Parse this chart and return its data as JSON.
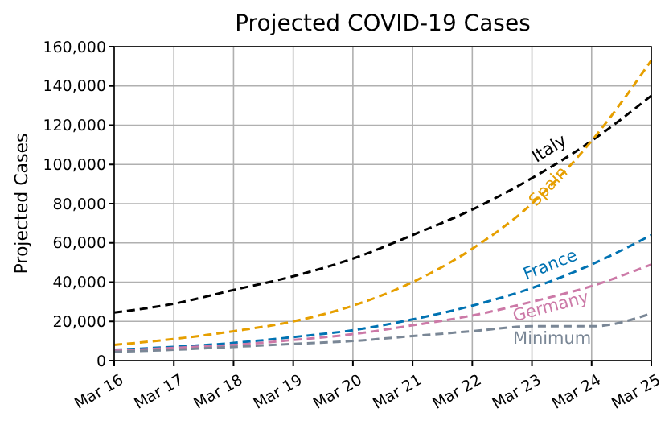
{
  "chart_data": {
    "type": "line",
    "title": "Projected COVID-19 Cases",
    "ylabel": "Projected Cases",
    "categories": [
      "Mar 16",
      "Mar 17",
      "Mar 18",
      "Mar 19",
      "Mar 20",
      "Mar 21",
      "Mar 22",
      "Mar 23",
      "Mar 24",
      "Mar 25"
    ],
    "series": [
      {
        "name": "Italy",
        "color": "#000000",
        "values": [
          24500,
          29000,
          36000,
          43000,
          52000,
          64000,
          77000,
          93000,
          112000,
          135000
        ]
      },
      {
        "name": "Spain",
        "color": "#e69f00",
        "values": [
          8000,
          11000,
          15000,
          20000,
          28000,
          40000,
          57000,
          80000,
          112000,
          153000
        ]
      },
      {
        "name": "France",
        "color": "#0072b2",
        "values": [
          5500,
          7000,
          9000,
          12000,
          15500,
          21000,
          28000,
          37000,
          49000,
          64000
        ]
      },
      {
        "name": "Germany",
        "color": "#cc79a7",
        "values": [
          5000,
          6500,
          8000,
          10500,
          13500,
          18000,
          23000,
          30000,
          38000,
          49000
        ]
      },
      {
        "name": "Minimum",
        "color": "#7a8796",
        "values": [
          4500,
          5500,
          7000,
          8500,
          10000,
          12500,
          15000,
          17500,
          17500,
          24000
        ]
      }
    ],
    "ylim": [
      0,
      160000
    ],
    "yticks": [
      {
        "value": 0,
        "label": "0"
      },
      {
        "value": 20000,
        "label": "20,000"
      },
      {
        "value": 40000,
        "label": "40,000"
      },
      {
        "value": 60000,
        "label": "60,000"
      },
      {
        "value": 80000,
        "label": "80,000"
      },
      {
        "value": 100000,
        "label": "100,000"
      },
      {
        "value": 120000,
        "label": "120,000"
      },
      {
        "value": 140000,
        "label": "140,000"
      },
      {
        "value": 160000,
        "label": "160,000"
      }
    ],
    "grid": true,
    "line_style": "dashed",
    "marker": "none"
  }
}
